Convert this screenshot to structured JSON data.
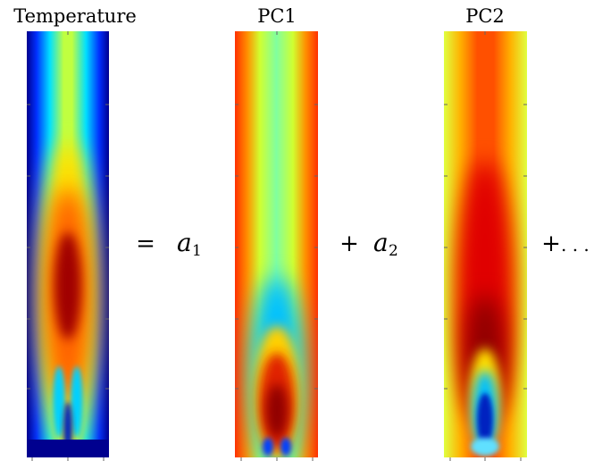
{
  "panels": [
    {
      "title": "Temperature"
    },
    {
      "title": "PC1"
    },
    {
      "title": "PC2"
    }
  ],
  "terms": [
    {
      "operator": "=",
      "coefficient": "a",
      "subscript": "1"
    },
    {
      "operator": "+",
      "coefficient": "a",
      "subscript": "2"
    },
    {
      "operator": "+",
      "rest": ". . ."
    }
  ]
}
